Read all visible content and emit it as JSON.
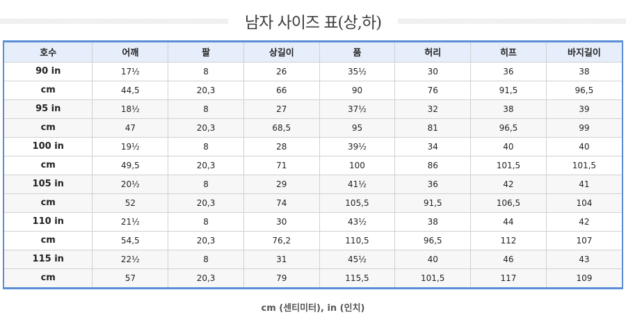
{
  "title": "남자 사이즈 표(상,하)",
  "footer_note": "cm (센티미터), in (인치)",
  "colors": {
    "table_border": "#5b8dd6",
    "header_bg": "#e5eefa",
    "shaded_row_bg": "#f7f7f7",
    "cell_border": "#d0d0d0",
    "text": "#222222"
  },
  "table": {
    "headers": [
      "호수",
      "어깨",
      "팔",
      "상길이",
      "품",
      "허리",
      "히프",
      "바지길이"
    ],
    "rows": [
      {
        "label": "90 in",
        "values": [
          "17½",
          "8",
          "26",
          "35½",
          "30",
          "36",
          "38"
        ]
      },
      {
        "label": "cm",
        "values": [
          "44,5",
          "20,3",
          "66",
          "90",
          "76",
          "91,5",
          "96,5"
        ]
      },
      {
        "label": "95 in",
        "values": [
          "18½",
          "8",
          "27",
          "37½",
          "32",
          "38",
          "39"
        ]
      },
      {
        "label": "cm",
        "values": [
          "47",
          "20,3",
          "68,5",
          "95",
          "81",
          "96,5",
          "99"
        ]
      },
      {
        "label": "100 in",
        "values": [
          "19½",
          "8",
          "28",
          "39½",
          "34",
          "40",
          "40"
        ]
      },
      {
        "label": "cm",
        "values": [
          "49,5",
          "20,3",
          "71",
          "100",
          "86",
          "101,5",
          "101,5"
        ]
      },
      {
        "label": "105 in",
        "values": [
          "20½",
          "8",
          "29",
          "41½",
          "36",
          "42",
          "41"
        ]
      },
      {
        "label": "cm",
        "values": [
          "52",
          "20,3",
          "74",
          "105,5",
          "91,5",
          "106,5",
          "104"
        ]
      },
      {
        "label": "110 in",
        "values": [
          "21½",
          "8",
          "30",
          "43½",
          "38",
          "44",
          "42"
        ]
      },
      {
        "label": "cm",
        "values": [
          "54,5",
          "20,3",
          "76,2",
          "110,5",
          "96,5",
          "112",
          "107"
        ]
      },
      {
        "label": "115 in",
        "values": [
          "22½",
          "8",
          "31",
          "45½",
          "40",
          "46",
          "43"
        ]
      },
      {
        "label": "cm",
        "values": [
          "57",
          "20,3",
          "79",
          "115,5",
          "101,5",
          "117",
          "109"
        ]
      }
    ]
  },
  "chart_data": {
    "type": "table",
    "title": "남자 사이즈 표(상,하)",
    "columns": [
      "호수",
      "어깨",
      "팔",
      "상길이",
      "품",
      "허리",
      "히프",
      "바지길이"
    ],
    "rows": [
      [
        "90 in",
        "17½",
        "8",
        "26",
        "35½",
        "30",
        "36",
        "38"
      ],
      [
        "cm",
        "44,5",
        "20,3",
        "66",
        "90",
        "76",
        "91,5",
        "96,5"
      ],
      [
        "95 in",
        "18½",
        "8",
        "27",
        "37½",
        "32",
        "38",
        "39"
      ],
      [
        "cm",
        "47",
        "20,3",
        "68,5",
        "95",
        "81",
        "96,5",
        "99"
      ],
      [
        "100 in",
        "19½",
        "8",
        "28",
        "39½",
        "34",
        "40",
        "40"
      ],
      [
        "cm",
        "49,5",
        "20,3",
        "71",
        "100",
        "86",
        "101,5",
        "101,5"
      ],
      [
        "105 in",
        "20½",
        "8",
        "29",
        "41½",
        "36",
        "42",
        "41"
      ],
      [
        "cm",
        "52",
        "20,3",
        "74",
        "105,5",
        "91,5",
        "106,5",
        "104"
      ],
      [
        "110 in",
        "21½",
        "8",
        "30",
        "43½",
        "38",
        "44",
        "42"
      ],
      [
        "cm",
        "54,5",
        "20,3",
        "76,2",
        "110,5",
        "96,5",
        "112",
        "107"
      ],
      [
        "115 in",
        "22½",
        "8",
        "31",
        "45½",
        "40",
        "46",
        "43"
      ],
      [
        "cm",
        "57",
        "20,3",
        "79",
        "115,5",
        "101,5",
        "117",
        "109"
      ]
    ]
  }
}
